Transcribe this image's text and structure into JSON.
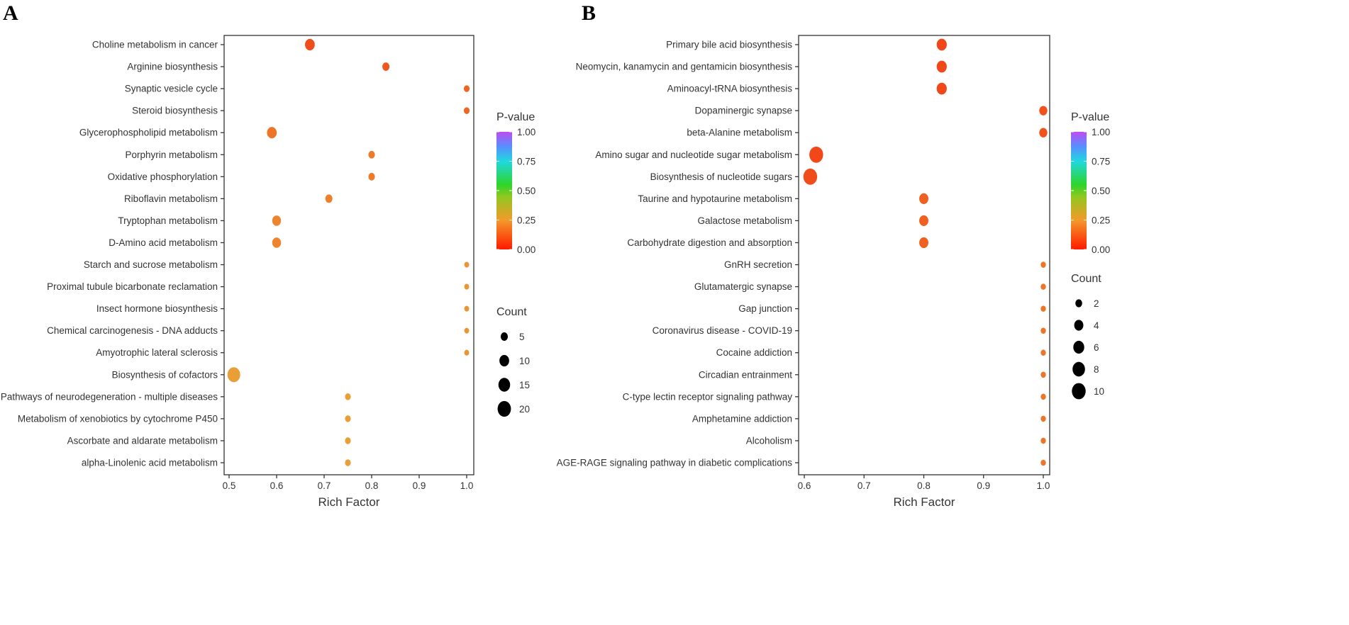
{
  "chart_data": [
    {
      "type": "scatter",
      "panel": "A",
      "xlabel": "Rich Factor",
      "xlim": [
        0.49,
        1.02
      ],
      "xticks": [
        "0.5",
        "0.6",
        "0.7",
        "0.8",
        "0.9",
        "1.0"
      ],
      "categories": [
        "Choline metabolism in cancer",
        "Arginine biosynthesis",
        "Synaptic vesicle cycle",
        "Steroid biosynthesis",
        "Glycerophospholipid metabolism",
        "Porphyrin metabolism",
        "Oxidative phosphorylation",
        "Riboflavin metabolism",
        "Tryptophan metabolism",
        "D-Amino acid metabolism",
        "Starch and sucrose metabolism",
        "Proximal tubule bicarbonate reclamation",
        "Insect hormone biosynthesis",
        "Chemical carcinogenesis - DNA adducts",
        "Amyotrophic lateral sclerosis",
        "Biosynthesis of cofactors",
        "Pathways of neurodegeneration - multiple diseases",
        "Metabolism of xenobiotics by cytochrome P450",
        "Ascorbate and aldarate metabolism",
        "alpha-Linolenic acid metabolism"
      ],
      "rich_factor": [
        0.67,
        0.83,
        1.0,
        1.0,
        0.59,
        0.8,
        0.8,
        0.71,
        0.6,
        0.6,
        1.0,
        1.0,
        1.0,
        1.0,
        1.0,
        0.51,
        0.75,
        0.75,
        0.75,
        0.75
      ],
      "count": [
        10,
        5,
        3,
        3,
        10,
        4,
        4,
        5,
        8,
        8,
        2,
        2,
        2,
        2,
        2,
        18,
        3,
        3,
        3,
        3
      ],
      "p_value": [
        0.04,
        0.06,
        0.09,
        0.09,
        0.12,
        0.13,
        0.13,
        0.14,
        0.15,
        0.15,
        0.18,
        0.18,
        0.18,
        0.18,
        0.18,
        0.2,
        0.2,
        0.2,
        0.2,
        0.2
      ],
      "color_legend": {
        "title": "P-value",
        "ticks": [
          "0.00",
          "0.25",
          "0.50",
          "0.75",
          "1.00"
        ]
      },
      "size_legend": {
        "title": "Count",
        "values": [
          5,
          10,
          15,
          20
        ],
        "labels": [
          "5",
          "10",
          "15",
          "20"
        ]
      }
    },
    {
      "type": "scatter",
      "panel": "B",
      "xlabel": "Rich Factor",
      "xlim": [
        0.59,
        1.01
      ],
      "xticks": [
        "0.6",
        "0.7",
        "0.8",
        "0.9",
        "1.0"
      ],
      "categories": [
        "Primary bile acid biosynthesis",
        "Neomycin, kanamycin and gentamicin biosynthesis",
        "Aminoacyl-tRNA biosynthesis",
        "Dopaminergic synapse",
        "beta-Alanine metabolism",
        "Amino sugar and nucleotide sugar metabolism",
        "Biosynthesis of nucleotide sugars",
        "Taurine and hypotaurine metabolism",
        "Galactose metabolism",
        "Carbohydrate digestion and absorption",
        "GnRH secretion",
        "Glutamatergic synapse",
        "Gap junction",
        "Coronavirus disease - COVID-19",
        "Cocaine addiction",
        "Circadian entrainment",
        "C-type lectin receptor signaling pathway",
        "Amphetamine addiction",
        "Alcoholism",
        "AGE-RAGE signaling pathway in diabetic complications"
      ],
      "rich_factor": [
        0.83,
        0.83,
        0.83,
        1.0,
        1.0,
        0.62,
        0.61,
        0.8,
        0.8,
        0.8,
        1.0,
        1.0,
        1.0,
        1.0,
        1.0,
        1.0,
        1.0,
        1.0,
        1.0,
        1.0
      ],
      "count": [
        5,
        5,
        5,
        3,
        3,
        10,
        10,
        4,
        4,
        4,
        1,
        1,
        1,
        1,
        1,
        1,
        1,
        1,
        1,
        1
      ],
      "p_value": [
        0.03,
        0.03,
        0.03,
        0.05,
        0.05,
        0.03,
        0.04,
        0.08,
        0.08,
        0.08,
        0.12,
        0.12,
        0.12,
        0.12,
        0.12,
        0.12,
        0.12,
        0.12,
        0.12,
        0.12
      ],
      "color_legend": {
        "title": "P-value",
        "ticks": [
          "0.00",
          "0.25",
          "0.50",
          "0.75",
          "1.00"
        ]
      },
      "size_legend": {
        "title": "Count",
        "values": [
          2,
          4,
          6,
          8,
          10
        ],
        "labels": [
          "2",
          "4",
          "6",
          "8",
          "10"
        ]
      }
    }
  ],
  "panels": [
    "A",
    "B"
  ]
}
